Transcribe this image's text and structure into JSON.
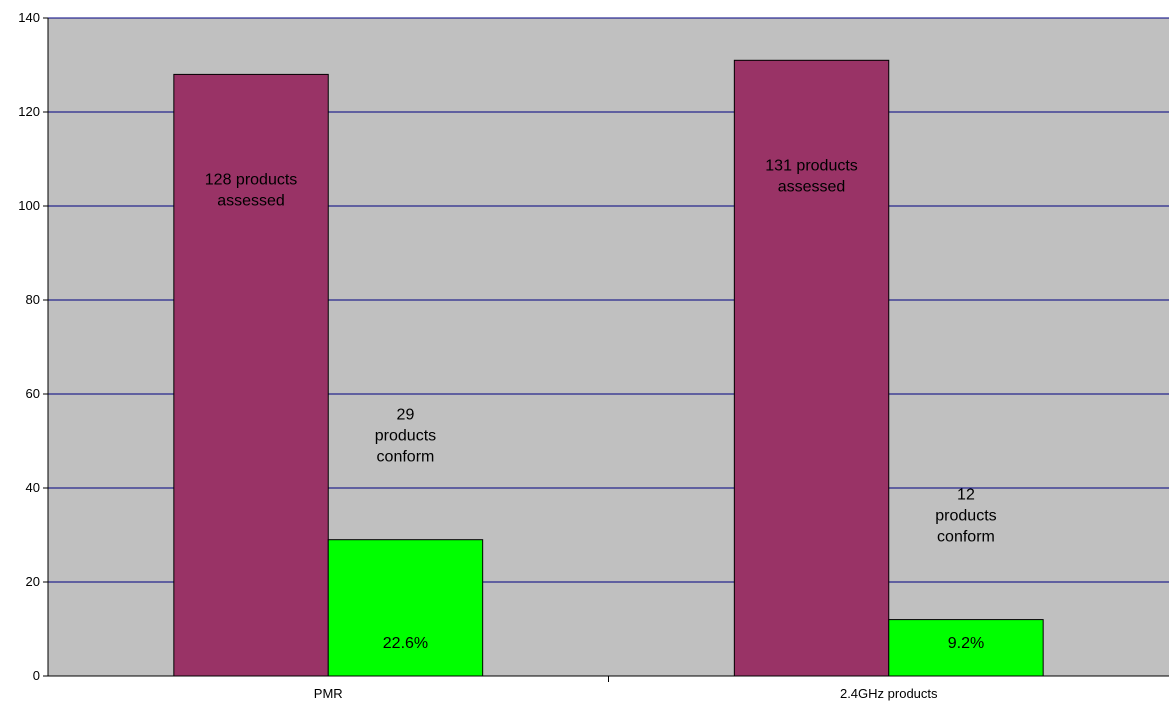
{
  "chart_data": {
    "type": "bar",
    "categories": [
      "PMR",
      "2.4GHz products"
    ],
    "series": [
      {
        "values": [
          128,
          131
        ],
        "color": "#993366"
      },
      {
        "values": [
          29,
          12
        ],
        "color": "#00ff00"
      }
    ],
    "ylim": [
      0,
      140
    ],
    "yticks": [
      0,
      20,
      40,
      60,
      80,
      100,
      120,
      140
    ],
    "grid": true,
    "plot_background": "#c0c0c0",
    "gridline_color": "#000080",
    "annotations": [
      {
        "series": 0,
        "category": 0,
        "lines": [
          "128 products",
          "assessed"
        ]
      },
      {
        "series": 0,
        "category": 1,
        "lines": [
          "131  products",
          "assessed"
        ]
      },
      {
        "series": 1,
        "category": 0,
        "lines": [
          "29",
          "products",
          "conform"
        ]
      },
      {
        "series": 1,
        "category": 1,
        "lines": [
          "12",
          "products",
          "conform"
        ]
      },
      {
        "series": 1,
        "category": 0,
        "lines": [
          "22.6%"
        ]
      },
      {
        "series": 1,
        "category": 1,
        "lines": [
          "9.2%"
        ]
      }
    ]
  }
}
